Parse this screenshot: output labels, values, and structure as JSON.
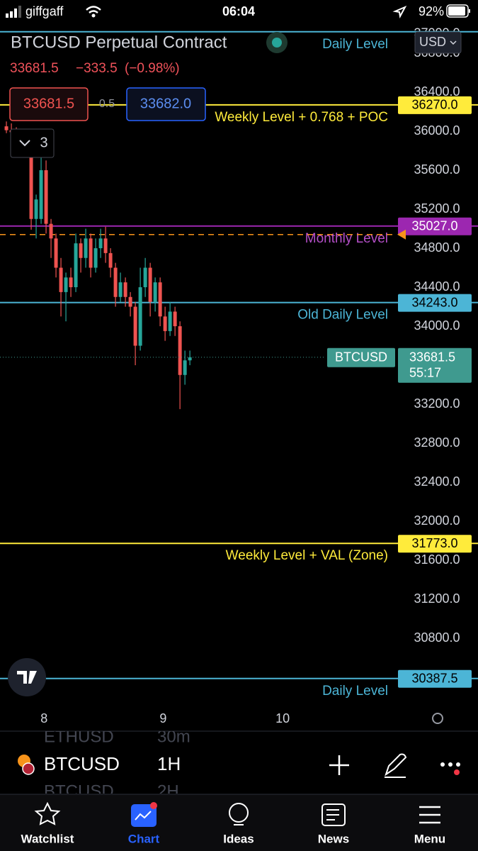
{
  "status_bar": {
    "carrier": "giffgaff",
    "time": "06:04",
    "battery": "92%"
  },
  "header": {
    "title": "BTCUSD Perpetual Contract",
    "last": "33681.5",
    "change": "−333.5",
    "change_percent": "(−0.98%)",
    "currency": "USD"
  },
  "trade": {
    "sell": "33681.5",
    "spread": "0.5",
    "buy": "33682.0"
  },
  "indicators": {
    "count": "3"
  },
  "chart_data": {
    "type": "candlestick",
    "open": [
      36050,
      36010,
      35990,
      35960,
      35930,
      35900,
      35100,
      35100,
      35600,
      35050,
      34900,
      34600,
      34350,
      34500,
      34400,
      34850,
      34700,
      34900,
      34600,
      34800,
      34900,
      34750,
      34600,
      34300,
      34450,
      34300,
      34200,
      33800,
      34400,
      34600,
      34250,
      34450,
      34100,
      33950,
      34150,
      34000,
      33500,
      33650
    ],
    "high": [
      36100,
      36080,
      36040,
      36020,
      35990,
      35950,
      35350,
      35750,
      35700,
      35100,
      34950,
      34700,
      34550,
      34600,
      34950,
      34900,
      35000,
      34950,
      34900,
      35000,
      35020,
      34800,
      34650,
      34550,
      34500,
      34350,
      34250,
      34600,
      34700,
      34650,
      34500,
      34500,
      34200,
      34250,
      34200,
      34050,
      33750,
      33750
    ],
    "low": [
      35980,
      35950,
      35900,
      35880,
      35850,
      34990,
      34900,
      35050,
      34950,
      34700,
      34500,
      34100,
      34050,
      34300,
      34350,
      34550,
      34600,
      34500,
      34550,
      34700,
      34650,
      34500,
      34200,
      34250,
      34200,
      34100,
      33600,
      33750,
      34300,
      34100,
      34150,
      34000,
      33850,
      33900,
      33900,
      33150,
      33400,
      33600
    ],
    "close": [
      36010,
      35990,
      35960,
      35930,
      35900,
      35100,
      35300,
      35600,
      35050,
      34900,
      34600,
      34350,
      34500,
      34400,
      34850,
      34700,
      34900,
      34600,
      34800,
      34900,
      34750,
      34600,
      34300,
      34450,
      34300,
      34200,
      33800,
      34400,
      34600,
      34250,
      34450,
      34100,
      33950,
      34150,
      34000,
      33500,
      33650,
      33681.5
    ],
    "colors": {
      "up": "#26a69a",
      "down": "#ef5350"
    },
    "xlim": [
      -1.29,
      95.1
    ],
    "xticks": [
      {
        "value": 7.6,
        "label": "8"
      },
      {
        "value": 31.6,
        "label": "9"
      },
      {
        "value": 55.7,
        "label": "10"
      }
    ],
    "ylim": [
      30150,
      37020
    ],
    "yticks": [
      {
        "value": 37000,
        "label": "37000.0"
      },
      {
        "value": 36800,
        "label": "36800.0"
      },
      {
        "value": 36400,
        "label": "36400.0"
      },
      {
        "value": 36000,
        "label": "36000.0"
      },
      {
        "value": 35600,
        "label": "35600.0"
      },
      {
        "value": 35200,
        "label": "35200.0"
      },
      {
        "value": 34800,
        "label": "34800.0"
      },
      {
        "value": 34400,
        "label": "34400.0"
      },
      {
        "value": 34000,
        "label": "34000.0"
      },
      {
        "value": 33200,
        "label": "33200.0"
      },
      {
        "value": 32800,
        "label": "32800.0"
      },
      {
        "value": 32400,
        "label": "32400.0"
      },
      {
        "value": 32000,
        "label": "32000.0"
      },
      {
        "value": 31600,
        "label": "31600.0"
      },
      {
        "value": 31200,
        "label": "31200.0"
      },
      {
        "value": 30800,
        "label": "30800.0"
      }
    ],
    "grid": false,
    "levels": [
      {
        "name": "Daily Level",
        "value": 37020,
        "color": "#4cb5d6"
      },
      {
        "name": "Weekly Level + 0.768 + POC",
        "value": 36270,
        "value_label": "36270.0",
        "color": "#ffeb3b"
      },
      {
        "name": "Monthly Level",
        "value": 35027,
        "value_label": "35027.0",
        "color": "#9c27b0"
      },
      {
        "value": 34940,
        "color": "#f7931a",
        "style": "dashed"
      },
      {
        "name": "Old Daily Level",
        "value": 34243,
        "value_label": "34243.0",
        "color": "#4cb5d6"
      },
      {
        "name": "Weekly Level + VAL (Zone)",
        "value": 31773,
        "value_label": "31773.0",
        "color": "#ffeb3b"
      },
      {
        "name": "Daily Level",
        "value": 30387.5,
        "value_label": "30387.5",
        "color": "#4cb5d6"
      }
    ],
    "last_price": {
      "value": 33681.5,
      "value_label": "33681.5",
      "symbol": "BTCUSD",
      "countdown": "55:17",
      "color": "#3f9a8f"
    }
  },
  "symbol_bar": {
    "symbol": "BTCUSD",
    "interval": "1H",
    "prev_symbol": "ETHUSD",
    "prev_interval": "30m",
    "next_symbol": "BTCUSD",
    "next_interval": "2H"
  },
  "tab_bar": {
    "tabs": [
      "Watchlist",
      "Chart",
      "Ideas",
      "News",
      "Menu"
    ],
    "active_index": 1
  }
}
